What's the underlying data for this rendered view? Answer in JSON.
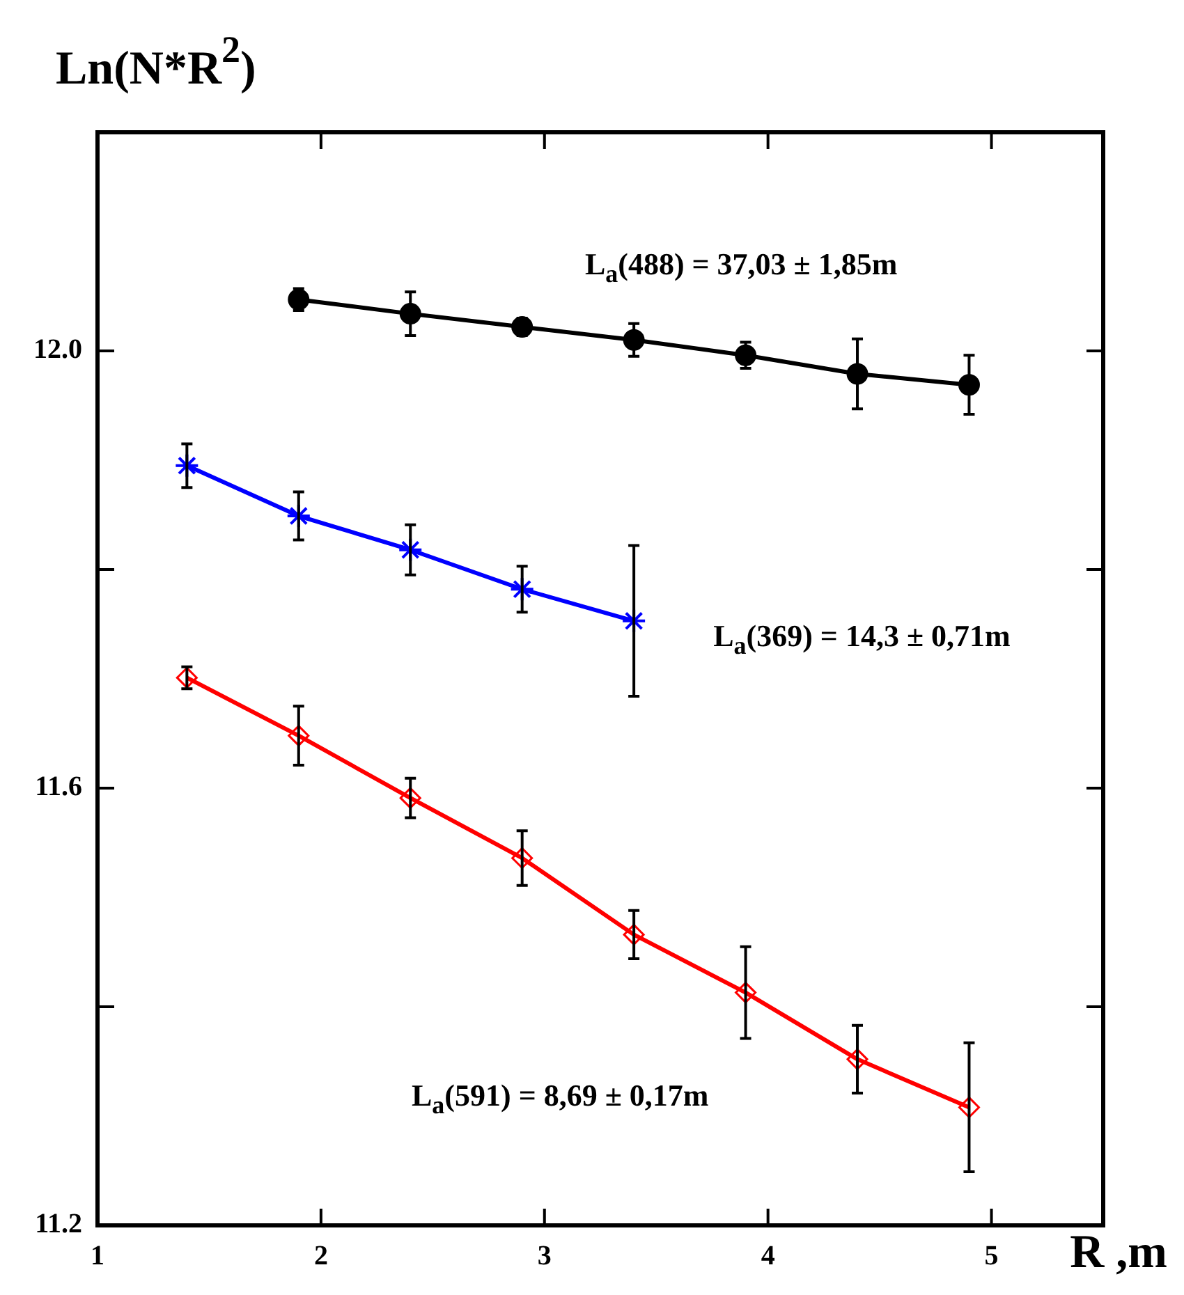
{
  "chart_data": {
    "type": "line",
    "xlabel": "R ,m",
    "ylabel": "Ln(N*R$^{2}$)",
    "xlim": [
      1,
      5.5
    ],
    "xticks": [
      1,
      2,
      3,
      4,
      5
    ],
    "ylim": [
      11.2,
      12.2
    ],
    "yticks": [
      11.2,
      {
        "value": 11.4,
        "label": null
      },
      11.6,
      {
        "value": 11.8,
        "label": null
      },
      {
        "value": 12,
        "label": "12.0"
      }
    ],
    "series": [
      {
        "color": "#000000",
        "marker": "circle",
        "x": [
          1.9,
          2.4,
          2.9,
          3.4,
          3.9,
          4.4,
          4.9
        ],
        "values": [
          12.047,
          12.034,
          12.022,
          12.01,
          11.996,
          11.979,
          11.969
        ],
        "errors": [
          0.01,
          0.02,
          0.008,
          0.015,
          0.012,
          0.032,
          0.027
        ]
      },
      {
        "color": "#0000ff",
        "marker": "cross",
        "x": [
          1.4,
          1.9,
          2.4,
          2.9,
          3.4
        ],
        "values": [
          11.895,
          11.849,
          11.818,
          11.782,
          11.753
        ],
        "errors": [
          0.02,
          0.022,
          0.023,
          0.021,
          0.069
        ]
      },
      {
        "color": "#ff0000",
        "marker": "diamond",
        "x": [
          1.4,
          1.9,
          2.4,
          2.9,
          3.4,
          3.9,
          4.4,
          4.9
        ],
        "values": [
          11.701,
          11.648,
          11.591,
          11.536,
          11.466,
          11.413,
          11.352,
          11.308
        ],
        "errors": [
          0.01,
          0.027,
          0.018,
          0.025,
          0.022,
          0.042,
          0.031,
          0.059
        ]
      }
    ],
    "annotations": [
      "L$_{a}$(488) = 37,03 ± 1,85m",
      "L$_{a}$(369) = 14,3 ± 0,71m",
      "L$_{a}$(591) = 8,69 ± 0,17m"
    ]
  }
}
